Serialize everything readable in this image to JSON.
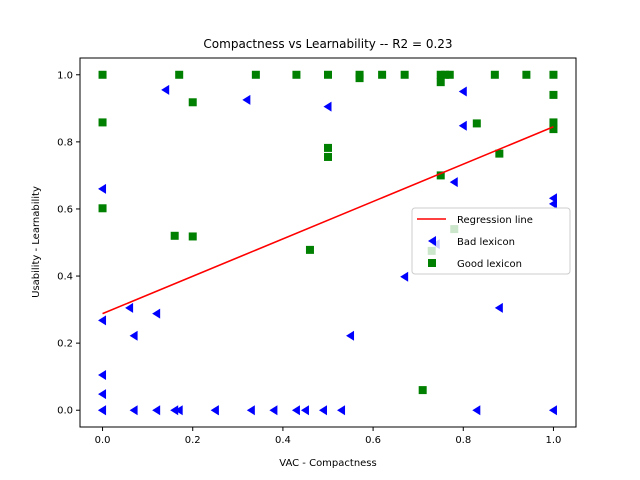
{
  "chart_data": {
    "type": "scatter",
    "title": "Compactness  vs  Learnability -- R2 = 0.23",
    "xlabel": "VAC - Compactness",
    "ylabel": "Usability - Learnability",
    "xlim": [
      -0.05,
      1.05
    ],
    "ylim": [
      -0.05,
      1.05
    ],
    "xticks": [
      "0.0",
      "0.2",
      "0.4",
      "0.6",
      "0.8",
      "1.0"
    ],
    "yticks": [
      "0.0",
      "0.2",
      "0.4",
      "0.6",
      "0.8",
      "1.0"
    ],
    "xtick_values": [
      0.0,
      0.2,
      0.4,
      0.6,
      0.8,
      1.0
    ],
    "ytick_values": [
      0.0,
      0.2,
      0.4,
      0.6,
      0.8,
      1.0
    ],
    "grid": false,
    "legend_position": "center-right",
    "regression": {
      "name": "Regression line",
      "color": "#ff0000",
      "x": [
        0.0,
        1.0
      ],
      "y": [
        0.288,
        0.845
      ]
    },
    "series": [
      {
        "name": "Bad lexicon",
        "marker": "triangle-left",
        "color": "#0000ff",
        "points": [
          [
            0.0,
            0.0
          ],
          [
            0.0,
            0.0
          ],
          [
            0.0,
            0.048
          ],
          [
            0.0,
            0.105
          ],
          [
            0.0,
            0.268
          ],
          [
            0.0,
            0.66
          ],
          [
            0.06,
            0.305
          ],
          [
            0.07,
            0.222
          ],
          [
            0.07,
            0.0
          ],
          [
            0.12,
            0.288
          ],
          [
            0.12,
            0.0
          ],
          [
            0.14,
            0.955
          ],
          [
            0.16,
            0.0
          ],
          [
            0.17,
            0.0
          ],
          [
            0.25,
            0.0
          ],
          [
            0.25,
            0.0
          ],
          [
            0.32,
            0.925
          ],
          [
            0.33,
            0.0
          ],
          [
            0.38,
            0.0
          ],
          [
            0.43,
            0.0
          ],
          [
            0.45,
            0.0
          ],
          [
            0.49,
            0.0
          ],
          [
            0.5,
            0.905
          ],
          [
            0.53,
            0.0
          ],
          [
            0.55,
            0.222
          ],
          [
            0.67,
            0.398
          ],
          [
            0.74,
            0.495
          ],
          [
            0.78,
            0.68
          ],
          [
            0.8,
            0.95
          ],
          [
            0.8,
            0.848
          ],
          [
            0.83,
            0.0
          ],
          [
            0.88,
            0.305
          ],
          [
            1.0,
            0.0
          ],
          [
            1.0,
            0.615
          ],
          [
            1.0,
            0.632
          ]
        ]
      },
      {
        "name": "Good lexicon",
        "marker": "square",
        "color": "#008000",
        "points": [
          [
            0.0,
            1.0
          ],
          [
            0.0,
            0.858
          ],
          [
            0.0,
            0.602
          ],
          [
            0.16,
            0.52
          ],
          [
            0.17,
            1.0
          ],
          [
            0.2,
            0.918
          ],
          [
            0.2,
            0.518
          ],
          [
            0.34,
            1.0
          ],
          [
            0.43,
            1.0
          ],
          [
            0.46,
            0.478
          ],
          [
            0.5,
            1.0
          ],
          [
            0.5,
            0.782
          ],
          [
            0.5,
            0.755
          ],
          [
            0.57,
            1.0
          ],
          [
            0.57,
            0.99
          ],
          [
            0.62,
            1.0
          ],
          [
            0.67,
            1.0
          ],
          [
            0.71,
            0.06
          ],
          [
            0.73,
            0.475
          ],
          [
            0.75,
            1.0
          ],
          [
            0.75,
            0.978
          ],
          [
            0.75,
            0.7
          ],
          [
            0.76,
            1.0
          ],
          [
            0.77,
            1.0
          ],
          [
            0.78,
            0.54
          ],
          [
            0.83,
            0.855
          ],
          [
            0.87,
            1.0
          ],
          [
            0.88,
            0.765
          ],
          [
            0.94,
            1.0
          ],
          [
            1.0,
            1.0
          ],
          [
            1.0,
            0.94
          ],
          [
            1.0,
            0.858
          ],
          [
            1.0,
            0.838
          ]
        ]
      }
    ]
  }
}
